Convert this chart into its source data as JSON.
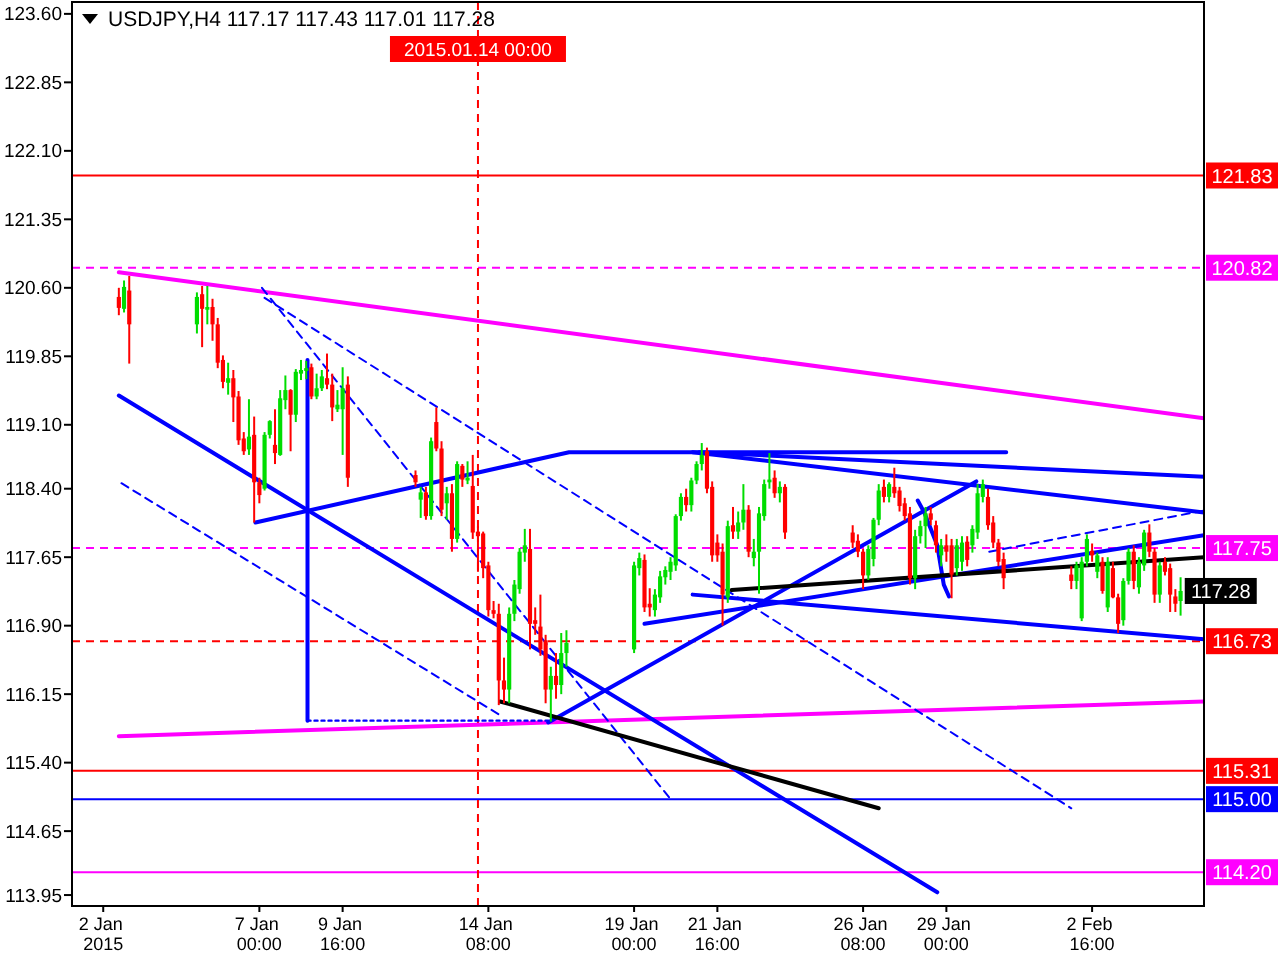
{
  "chart_data": {
    "type": "candlestick",
    "title": "USDJPY,H4 117.17 117.43 117.01 117.28",
    "x": [
      "2015-01-02T12:00",
      "2015-01-02T16:00",
      "2015-01-02T20:00",
      "2015-01-05T00:00",
      "2015-01-05T04:00",
      "2015-01-05T08:00",
      "2015-01-05T12:00",
      "2015-01-05T16:00",
      "2015-01-05T20:00",
      "2015-01-06T00:00",
      "2015-01-06T04:00",
      "2015-01-06T08:00",
      "2015-01-06T12:00",
      "2015-01-06T16:00",
      "2015-01-06T20:00",
      "2015-01-07T00:00",
      "2015-01-07T04:00",
      "2015-01-07T08:00",
      "2015-01-07T12:00",
      "2015-01-07T16:00",
      "2015-01-07T20:00",
      "2015-01-08T00:00",
      "2015-01-08T04:00",
      "2015-01-08T08:00",
      "2015-01-08T12:00",
      "2015-01-08T16:00",
      "2015-01-08T20:00",
      "2015-01-09T00:00",
      "2015-01-09T04:00",
      "2015-01-09T08:00",
      "2015-01-09T12:00",
      "2015-01-09T16:00",
      "2015-01-09T20:00",
      "2015-01-12T00:00",
      "2015-01-12T04:00",
      "2015-01-12T08:00",
      "2015-01-12T12:00",
      "2015-01-12T16:00",
      "2015-01-12T20:00",
      "2015-01-13T00:00",
      "2015-01-13T04:00",
      "2015-01-13T08:00",
      "2015-01-13T12:00",
      "2015-01-13T16:00",
      "2015-01-13T20:00",
      "2015-01-14T00:00",
      "2015-01-14T04:00",
      "2015-01-14T08:00",
      "2015-01-14T12:00",
      "2015-01-14T16:00",
      "2015-01-14T20:00",
      "2015-01-15T00:00",
      "2015-01-15T04:00",
      "2015-01-15T08:00",
      "2015-01-15T12:00",
      "2015-01-15T16:00",
      "2015-01-15T20:00",
      "2015-01-16T00:00",
      "2015-01-16T04:00",
      "2015-01-16T08:00",
      "2015-01-16T12:00",
      "2015-01-16T16:00",
      "2015-01-16T20:00",
      "2015-01-19T00:00",
      "2015-01-19T04:00",
      "2015-01-19T08:00",
      "2015-01-19T12:00",
      "2015-01-19T16:00",
      "2015-01-19T20:00",
      "2015-01-20T00:00",
      "2015-01-20T04:00",
      "2015-01-20T08:00",
      "2015-01-20T12:00",
      "2015-01-20T16:00",
      "2015-01-20T20:00",
      "2015-01-21T00:00",
      "2015-01-21T04:00",
      "2015-01-21T08:00",
      "2015-01-21T12:00",
      "2015-01-21T16:00",
      "2015-01-21T20:00",
      "2015-01-22T00:00",
      "2015-01-22T04:00",
      "2015-01-22T08:00",
      "2015-01-22T12:00",
      "2015-01-22T16:00",
      "2015-01-22T20:00",
      "2015-01-23T00:00",
      "2015-01-23T04:00",
      "2015-01-23T08:00",
      "2015-01-23T12:00",
      "2015-01-23T16:00",
      "2015-01-23T20:00",
      "2015-01-26T00:00",
      "2015-01-26T04:00",
      "2015-01-26T08:00",
      "2015-01-26T12:00",
      "2015-01-26T16:00",
      "2015-01-26T20:00",
      "2015-01-27T00:00",
      "2015-01-27T04:00",
      "2015-01-27T08:00",
      "2015-01-27T12:00",
      "2015-01-27T16:00",
      "2015-01-27T20:00",
      "2015-01-28T00:00",
      "2015-01-28T04:00",
      "2015-01-28T08:00",
      "2015-01-28T12:00",
      "2015-01-28T16:00",
      "2015-01-28T20:00",
      "2015-01-29T00:00",
      "2015-01-29T04:00",
      "2015-01-29T08:00",
      "2015-01-29T12:00",
      "2015-01-29T16:00",
      "2015-01-29T20:00",
      "2015-01-30T00:00",
      "2015-01-30T04:00",
      "2015-01-30T08:00",
      "2015-01-30T12:00",
      "2015-01-30T16:00",
      "2015-01-30T20:00",
      "2015-02-02T00:00",
      "2015-02-02T04:00",
      "2015-02-02T08:00",
      "2015-02-02T12:00",
      "2015-02-02T16:00",
      "2015-02-02T20:00",
      "2015-02-03T00:00",
      "2015-02-03T04:00",
      "2015-02-03T08:00",
      "2015-02-03T12:00",
      "2015-02-03T16:00",
      "2015-02-03T20:00",
      "2015-02-04T00:00",
      "2015-02-04T04:00",
      "2015-02-04T08:00",
      "2015-02-04T12:00",
      "2015-02-04T16:00",
      "2015-02-04T20:00",
      "2015-02-05T00:00",
      "2015-02-05T04:00",
      "2015-02-05T08:00",
      "2015-02-05T12:00"
    ],
    "ohlc": [
      [
        120.5,
        120.6,
        120.3,
        120.38
      ],
      [
        120.37,
        120.68,
        120.33,
        120.61
      ],
      [
        120.57,
        120.73,
        119.77,
        120.2
      ],
      [
        120.2,
        120.55,
        120.1,
        120.5
      ],
      [
        120.53,
        120.62,
        119.95,
        120.37
      ],
      [
        120.36,
        120.62,
        120.2,
        120.39
      ],
      [
        120.39,
        120.48,
        120.02,
        120.2
      ],
      [
        120.2,
        120.27,
        119.72,
        119.78
      ],
      [
        119.81,
        119.86,
        119.5,
        119.57
      ],
      [
        119.56,
        119.78,
        119.43,
        119.61
      ],
      [
        119.61,
        119.7,
        119.13,
        119.4
      ],
      [
        119.41,
        119.47,
        118.88,
        118.93
      ],
      [
        118.95,
        119.02,
        118.77,
        118.81
      ],
      [
        118.83,
        119.38,
        118.77,
        118.97
      ],
      [
        118.99,
        119.19,
        118.03,
        118.47
      ],
      [
        118.47,
        118.52,
        118.24,
        118.33
      ],
      [
        118.4,
        119.02,
        118.38,
        118.99
      ],
      [
        118.99,
        119.15,
        118.95,
        119.14
      ],
      [
        118.88,
        119.27,
        118.67,
        118.79
      ],
      [
        118.77,
        119.48,
        118.76,
        119.39
      ],
      [
        119.37,
        119.64,
        119.27,
        119.48
      ],
      [
        119.48,
        119.49,
        118.81,
        119.21
      ],
      [
        119.21,
        119.71,
        119.13,
        119.68
      ],
      [
        119.66,
        119.81,
        119.59,
        119.7
      ],
      [
        119.69,
        119.8,
        119.6,
        119.72
      ],
      [
        119.73,
        119.77,
        119.38,
        119.41
      ],
      [
        119.41,
        119.66,
        119.38,
        119.5
      ],
      [
        119.5,
        119.7,
        119.47,
        119.63
      ],
      [
        119.61,
        119.88,
        119.49,
        119.54
      ],
      [
        119.54,
        119.66,
        119.14,
        119.29
      ],
      [
        119.27,
        119.48,
        119.24,
        119.32
      ],
      [
        119.27,
        119.73,
        118.77,
        119.5
      ],
      [
        119.54,
        119.63,
        118.42,
        118.52
      ],
      [
        118.55,
        118.6,
        118.42,
        118.47
      ],
      [
        118.28,
        118.42,
        118.08,
        118.36
      ],
      [
        118.36,
        118.42,
        118.06,
        118.1
      ],
      [
        118.1,
        118.96,
        118.06,
        118.92
      ],
      [
        119.13,
        119.29,
        118.81,
        118.84
      ],
      [
        118.84,
        118.92,
        118.1,
        118.17
      ],
      [
        118.24,
        118.42,
        118.06,
        118.35
      ],
      [
        118.35,
        118.45,
        117.71,
        117.85
      ],
      [
        117.85,
        118.7,
        117.81,
        118.67
      ],
      [
        118.65,
        118.67,
        118.42,
        118.5
      ],
      [
        118.49,
        118.7,
        118.45,
        118.52
      ],
      [
        118.43,
        118.77,
        117.85,
        117.92
      ],
      [
        117.93,
        117.99,
        117.49,
        117.88
      ],
      [
        117.91,
        117.93,
        117.42,
        117.53
      ],
      [
        117.56,
        117.6,
        117.0,
        117.07
      ],
      [
        117.07,
        117.17,
        116.98,
        117.03
      ],
      [
        117.03,
        117.14,
        116.03,
        116.3
      ],
      [
        116.3,
        116.55,
        116.05,
        116.2
      ],
      [
        116.2,
        117.1,
        116.05,
        117.03
      ],
      [
        117.03,
        117.4,
        116.95,
        117.35
      ],
      [
        117.3,
        117.75,
        117.25,
        117.71
      ],
      [
        117.7,
        117.96,
        117.6,
        117.78
      ],
      [
        117.74,
        117.96,
        116.64,
        116.92
      ],
      [
        116.96,
        117.1,
        116.8,
        116.92
      ],
      [
        116.89,
        117.24,
        116.57,
        116.64
      ],
      [
        116.74,
        116.8,
        116.05,
        116.2
      ],
      [
        116.2,
        116.45,
        115.85,
        116.35
      ],
      [
        116.35,
        116.6,
        116.1,
        116.25
      ],
      [
        116.25,
        116.82,
        116.15,
        116.6
      ],
      [
        116.6,
        116.85,
        116.45,
        116.71
      ],
      [
        116.64,
        117.6,
        116.6,
        117.56
      ],
      [
        117.53,
        117.7,
        117.45,
        117.64
      ],
      [
        117.62,
        117.68,
        117.05,
        117.1
      ],
      [
        117.14,
        117.31,
        117.0,
        117.1
      ],
      [
        117.07,
        117.3,
        117.0,
        117.24
      ],
      [
        117.21,
        117.5,
        117.15,
        117.44
      ],
      [
        117.43,
        117.55,
        117.35,
        117.51
      ],
      [
        117.49,
        117.65,
        117.4,
        117.6
      ],
      [
        117.56,
        118.12,
        117.5,
        118.1
      ],
      [
        118.1,
        118.35,
        118.05,
        118.31
      ],
      [
        118.31,
        118.4,
        118.15,
        118.22
      ],
      [
        118.22,
        118.52,
        118.15,
        118.49
      ],
      [
        118.49,
        118.7,
        118.45,
        118.67
      ],
      [
        118.67,
        118.9,
        118.6,
        118.77
      ],
      [
        118.81,
        118.85,
        118.35,
        118.4
      ],
      [
        118.42,
        118.48,
        117.6,
        117.67
      ],
      [
        117.81,
        117.9,
        117.6,
        117.67
      ],
      [
        117.71,
        117.8,
        116.9,
        117.24
      ],
      [
        117.21,
        118.05,
        117.15,
        117.99
      ],
      [
        118.0,
        118.2,
        117.85,
        117.93
      ],
      [
        117.93,
        118.15,
        117.85,
        118.03
      ],
      [
        118.03,
        118.45,
        117.95,
        118.17
      ],
      [
        118.17,
        118.22,
        117.65,
        117.71
      ],
      [
        117.64,
        117.85,
        117.55,
        117.71
      ],
      [
        117.71,
        118.2,
        117.25,
        118.13
      ],
      [
        118.1,
        118.5,
        118.05,
        118.45
      ],
      [
        118.47,
        118.79,
        118.4,
        118.5
      ],
      [
        118.52,
        118.6,
        118.3,
        118.35
      ],
      [
        118.35,
        118.48,
        118.25,
        118.42
      ],
      [
        118.42,
        118.45,
        117.85,
        117.92
      ],
      [
        117.92,
        118.0,
        117.75,
        117.81
      ],
      [
        117.83,
        117.9,
        117.65,
        117.71
      ],
      [
        117.71,
        117.74,
        117.3,
        117.45
      ],
      [
        117.45,
        117.78,
        117.4,
        117.74
      ],
      [
        117.63,
        118.08,
        117.55,
        118.06
      ],
      [
        118.06,
        118.45,
        118.0,
        118.38
      ],
      [
        118.42,
        118.5,
        118.25,
        118.31
      ],
      [
        118.31,
        118.47,
        118.25,
        118.45
      ],
      [
        118.42,
        118.63,
        118.3,
        118.35
      ],
      [
        118.38,
        118.42,
        118.15,
        118.21
      ],
      [
        118.24,
        118.3,
        118.05,
        118.1
      ],
      [
        118.13,
        118.2,
        117.35,
        117.42
      ],
      [
        117.42,
        117.95,
        117.3,
        117.88
      ],
      [
        117.88,
        118.05,
        117.8,
        117.99
      ],
      [
        117.99,
        118.2,
        117.75,
        118.13
      ],
      [
        118.13,
        118.2,
        118.0,
        118.06
      ],
      [
        118.0,
        118.05,
        117.7,
        117.78
      ],
      [
        117.67,
        117.85,
        117.55,
        117.78
      ],
      [
        117.78,
        117.9,
        117.6,
        117.71
      ],
      [
        117.78,
        117.85,
        117.2,
        117.46
      ],
      [
        117.53,
        117.85,
        117.45,
        117.78
      ],
      [
        117.6,
        117.88,
        117.5,
        117.81
      ],
      [
        117.82,
        117.88,
        117.55,
        117.62
      ],
      [
        117.78,
        118.0,
        117.7,
        117.96
      ],
      [
        117.92,
        118.45,
        117.85,
        118.35
      ],
      [
        118.31,
        118.5,
        118.25,
        118.45
      ],
      [
        118.31,
        118.4,
        117.95,
        118.0
      ],
      [
        118.03,
        118.1,
        117.75,
        117.81
      ],
      [
        117.81,
        117.85,
        117.55,
        117.6
      ],
      [
        117.63,
        117.7,
        117.3,
        117.42
      ],
      [
        117.46,
        117.55,
        117.3,
        117.39
      ],
      [
        117.39,
        117.6,
        117.3,
        117.56
      ],
      [
        116.98,
        117.65,
        116.95,
        117.6
      ],
      [
        117.6,
        117.9,
        117.55,
        117.85
      ],
      [
        117.72,
        117.8,
        117.6,
        117.67
      ],
      [
        117.49,
        117.7,
        117.42,
        117.67
      ],
      [
        117.6,
        117.65,
        117.25,
        117.28
      ],
      [
        117.1,
        117.65,
        117.05,
        117.6
      ],
      [
        117.53,
        117.6,
        117.2,
        117.21
      ],
      [
        117.21,
        117.25,
        116.82,
        116.92
      ],
      [
        116.96,
        117.42,
        116.9,
        117.39
      ],
      [
        117.39,
        117.75,
        117.35,
        117.71
      ],
      [
        117.71,
        117.78,
        117.3,
        117.39
      ],
      [
        117.32,
        117.65,
        117.25,
        117.6
      ],
      [
        117.56,
        117.95,
        117.5,
        117.92
      ],
      [
        117.92,
        118.01,
        117.65,
        117.71
      ],
      [
        117.71,
        117.75,
        117.15,
        117.24
      ],
      [
        117.24,
        117.6,
        117.15,
        117.56
      ],
      [
        117.6,
        117.65,
        117.45,
        117.49
      ],
      [
        117.53,
        117.58,
        117.05,
        117.24
      ],
      [
        117.22,
        117.3,
        117.05,
        117.14
      ],
      [
        117.17,
        117.43,
        117.01,
        117.28
      ]
    ],
    "series": [
      {
        "type": "line",
        "x": [
          "2015-01-02T12:00",
          "2015-02-06T06:00"
        ],
        "values": [
          120.77,
          119.17
        ],
        "color": "#ff00ff",
        "line_style": "solid"
      },
      {
        "type": "line",
        "x": [
          "2015-01-02T12:00",
          "2015-02-06T06:00"
        ],
        "values": [
          115.69,
          116.07
        ],
        "color": "#ff00ff",
        "line_style": "solid"
      },
      {
        "type": "line",
        "x": [
          "2015-01-02T12:00",
          "2015-01-28T17:00"
        ],
        "values": [
          119.42,
          113.98
        ],
        "color": "#0000ff",
        "line_style": "solid"
      },
      {
        "type": "line",
        "x": [
          "2015-01-06T21:00",
          "2015-01-16T22:00",
          "2015-01-30T22:00"
        ],
        "values": [
          118.03,
          118.8,
          118.8
        ],
        "color": "#0000ff",
        "line_style": "solid"
      },
      {
        "type": "line",
        "x": [
          "2015-01-08T13:00",
          "2015-01-08T13:00"
        ],
        "values": [
          119.81,
          115.86
        ],
        "color": "#0000ff",
        "line_style": "solid"
      },
      {
        "type": "line",
        "x": [
          "2015-01-08T13:00",
          "2015-01-16T06:00"
        ],
        "values": [
          115.86,
          115.86
        ],
        "color": "#0000ff",
        "line_style": "dotted"
      },
      {
        "type": "line",
        "x": [
          "2015-01-16T06:00",
          "2015-01-29T23:00"
        ],
        "values": [
          115.84,
          118.48
        ],
        "color": "#0000ff",
        "line_style": "solid"
      },
      {
        "type": "line",
        "x": [
          "2015-01-21T02:00",
          "2015-02-06T06:00"
        ],
        "values": [
          118.8,
          118.53
        ],
        "color": "#0000ff",
        "line_style": "solid"
      },
      {
        "type": "line",
        "x": [
          "2015-01-19T08:00",
          "2015-02-06T06:00"
        ],
        "values": [
          116.92,
          117.89
        ],
        "color": "#0000ff",
        "line_style": "solid"
      },
      {
        "type": "line",
        "x": [
          "2015-01-28T02:00",
          "2015-01-28T07:00",
          "2015-01-28T17:00",
          "2015-01-28T22:00",
          "2015-01-29T02:00"
        ],
        "values": [
          118.27,
          118.14,
          117.78,
          117.35,
          117.22
        ],
        "color": "#0000ff",
        "line_style": "solid"
      },
      {
        "type": "line",
        "x": [
          "2015-01-20T21:00",
          "2015-02-06T06:00"
        ],
        "values": [
          118.8,
          118.14
        ],
        "color": "#0000ff",
        "line_style": "solid"
      },
      {
        "type": "line",
        "x": [
          "2015-01-30T09:00",
          "2015-02-06T06:00"
        ],
        "values": [
          117.71,
          118.16
        ],
        "color": "#0000ff",
        "line_style": "dashed"
      },
      {
        "type": "line",
        "x": [
          "2015-01-20T21:00",
          "2015-02-06T06:00"
        ],
        "values": [
          117.24,
          116.75
        ],
        "color": "#0000ff",
        "line_style": "solid"
      },
      {
        "type": "line",
        "x": [
          "2015-01-07T02:00",
          "2015-01-20T04:00"
        ],
        "values": [
          120.6,
          115.0
        ],
        "color": "#0000ff",
        "line_style": "dashed"
      },
      {
        "type": "line",
        "x": [
          "2015-01-02T14:00",
          "2015-01-14T17:00"
        ],
        "values": [
          118.46,
          115.92
        ],
        "color": "#0000ff",
        "line_style": "dashed"
      },
      {
        "type": "line",
        "x": [
          "2015-01-07T04:00",
          "2015-02-02T00:00"
        ],
        "values": [
          120.49,
          114.9
        ],
        "color": "#0000ff",
        "line_style": "dashed"
      },
      {
        "type": "line",
        "x": [
          "2015-01-14T17:00",
          "2015-01-26T20:00"
        ],
        "values": [
          116.07,
          114.9
        ],
        "color": "#000000",
        "line_style": "solid"
      },
      {
        "type": "line",
        "x": [
          "2015-01-22T03:00",
          "2015-02-06T06:00"
        ],
        "values": [
          117.29,
          117.65
        ],
        "color": "#000000",
        "line_style": "solid"
      }
    ],
    "xlim": [
      "2015-01-01T00:00",
      "2015-02-06T06:00"
    ],
    "ylim": [
      113.83,
      123.73
    ],
    "xticks": [
      {
        "value": "2015-01-02",
        "label": "2 Jan 2015"
      },
      {
        "value": "2015-01-07T00:00",
        "label": "7 Jan 00:00"
      },
      {
        "value": "2015-01-09T16:00",
        "label": "9 Jan 16:00"
      },
      {
        "value": "2015-01-14T08:00",
        "label": "14 Jan 08:00"
      },
      {
        "value": "2015-01-19T00:00",
        "label": "19 Jan 00:00"
      },
      {
        "value": "2015-01-21T16:00",
        "label": "21 Jan 16:00"
      },
      {
        "value": "2015-01-26T08:00",
        "label": "26 Jan 08:00"
      },
      {
        "value": "2015-01-29T00:00",
        "label": "29 Jan 00:00"
      },
      {
        "value": "2015-02-02T16:00",
        "label": "2 Feb 16:00"
      }
    ],
    "yticks": [
      {
        "value": 123.6,
        "label": "123.60"
      },
      122.85,
      {
        "value": 122.1,
        "label": "122.10"
      },
      121.35,
      {
        "value": 120.6,
        "label": "120.60"
      },
      119.85,
      {
        "value": 119.1,
        "label": "119.10"
      },
      {
        "value": 118.4,
        "label": "118.40"
      },
      117.65,
      {
        "value": 116.9,
        "label": "116.90"
      },
      116.15,
      {
        "value": 115.4,
        "label": "115.40"
      },
      114.65,
      113.95
    ],
    "ref_lines": [
      {
        "axis": "y",
        "value": 121.83,
        "label": "121.83",
        "color": "#ff0000",
        "line_style": "solid"
      },
      {
        "axis": "y",
        "value": 120.82,
        "label": "120.82",
        "color": "#ff00ff",
        "line_style": "dashed"
      },
      {
        "axis": "y",
        "value": 117.75,
        "label": "117.75",
        "color": "#ff00ff",
        "line_style": "dashed"
      },
      {
        "axis": "y",
        "value": 116.73,
        "label": "116.73",
        "color": "#ff0000",
        "line_style": "dashed"
      },
      {
        "axis": "y",
        "value": 115.31,
        "label": "115.31",
        "color": "#ff0000",
        "line_style": "solid"
      },
      {
        "axis": "y",
        "value": 115.0,
        "label": "115.00",
        "color": "#0000ff",
        "line_style": "solid"
      },
      {
        "axis": "y",
        "value": 114.2,
        "label": "114.20",
        "color": "#ff00ff",
        "line_style": "solid"
      },
      {
        "axis": "x",
        "value": "2015-01-14T00:00",
        "label": "2015.01.14 00:00",
        "color": "#ff0000",
        "line_style": "dashed"
      }
    ],
    "annotations": [
      {
        "text": "117.28",
        "x": "2015-02-05T12:00",
        "y": 117.28
      }
    ]
  }
}
